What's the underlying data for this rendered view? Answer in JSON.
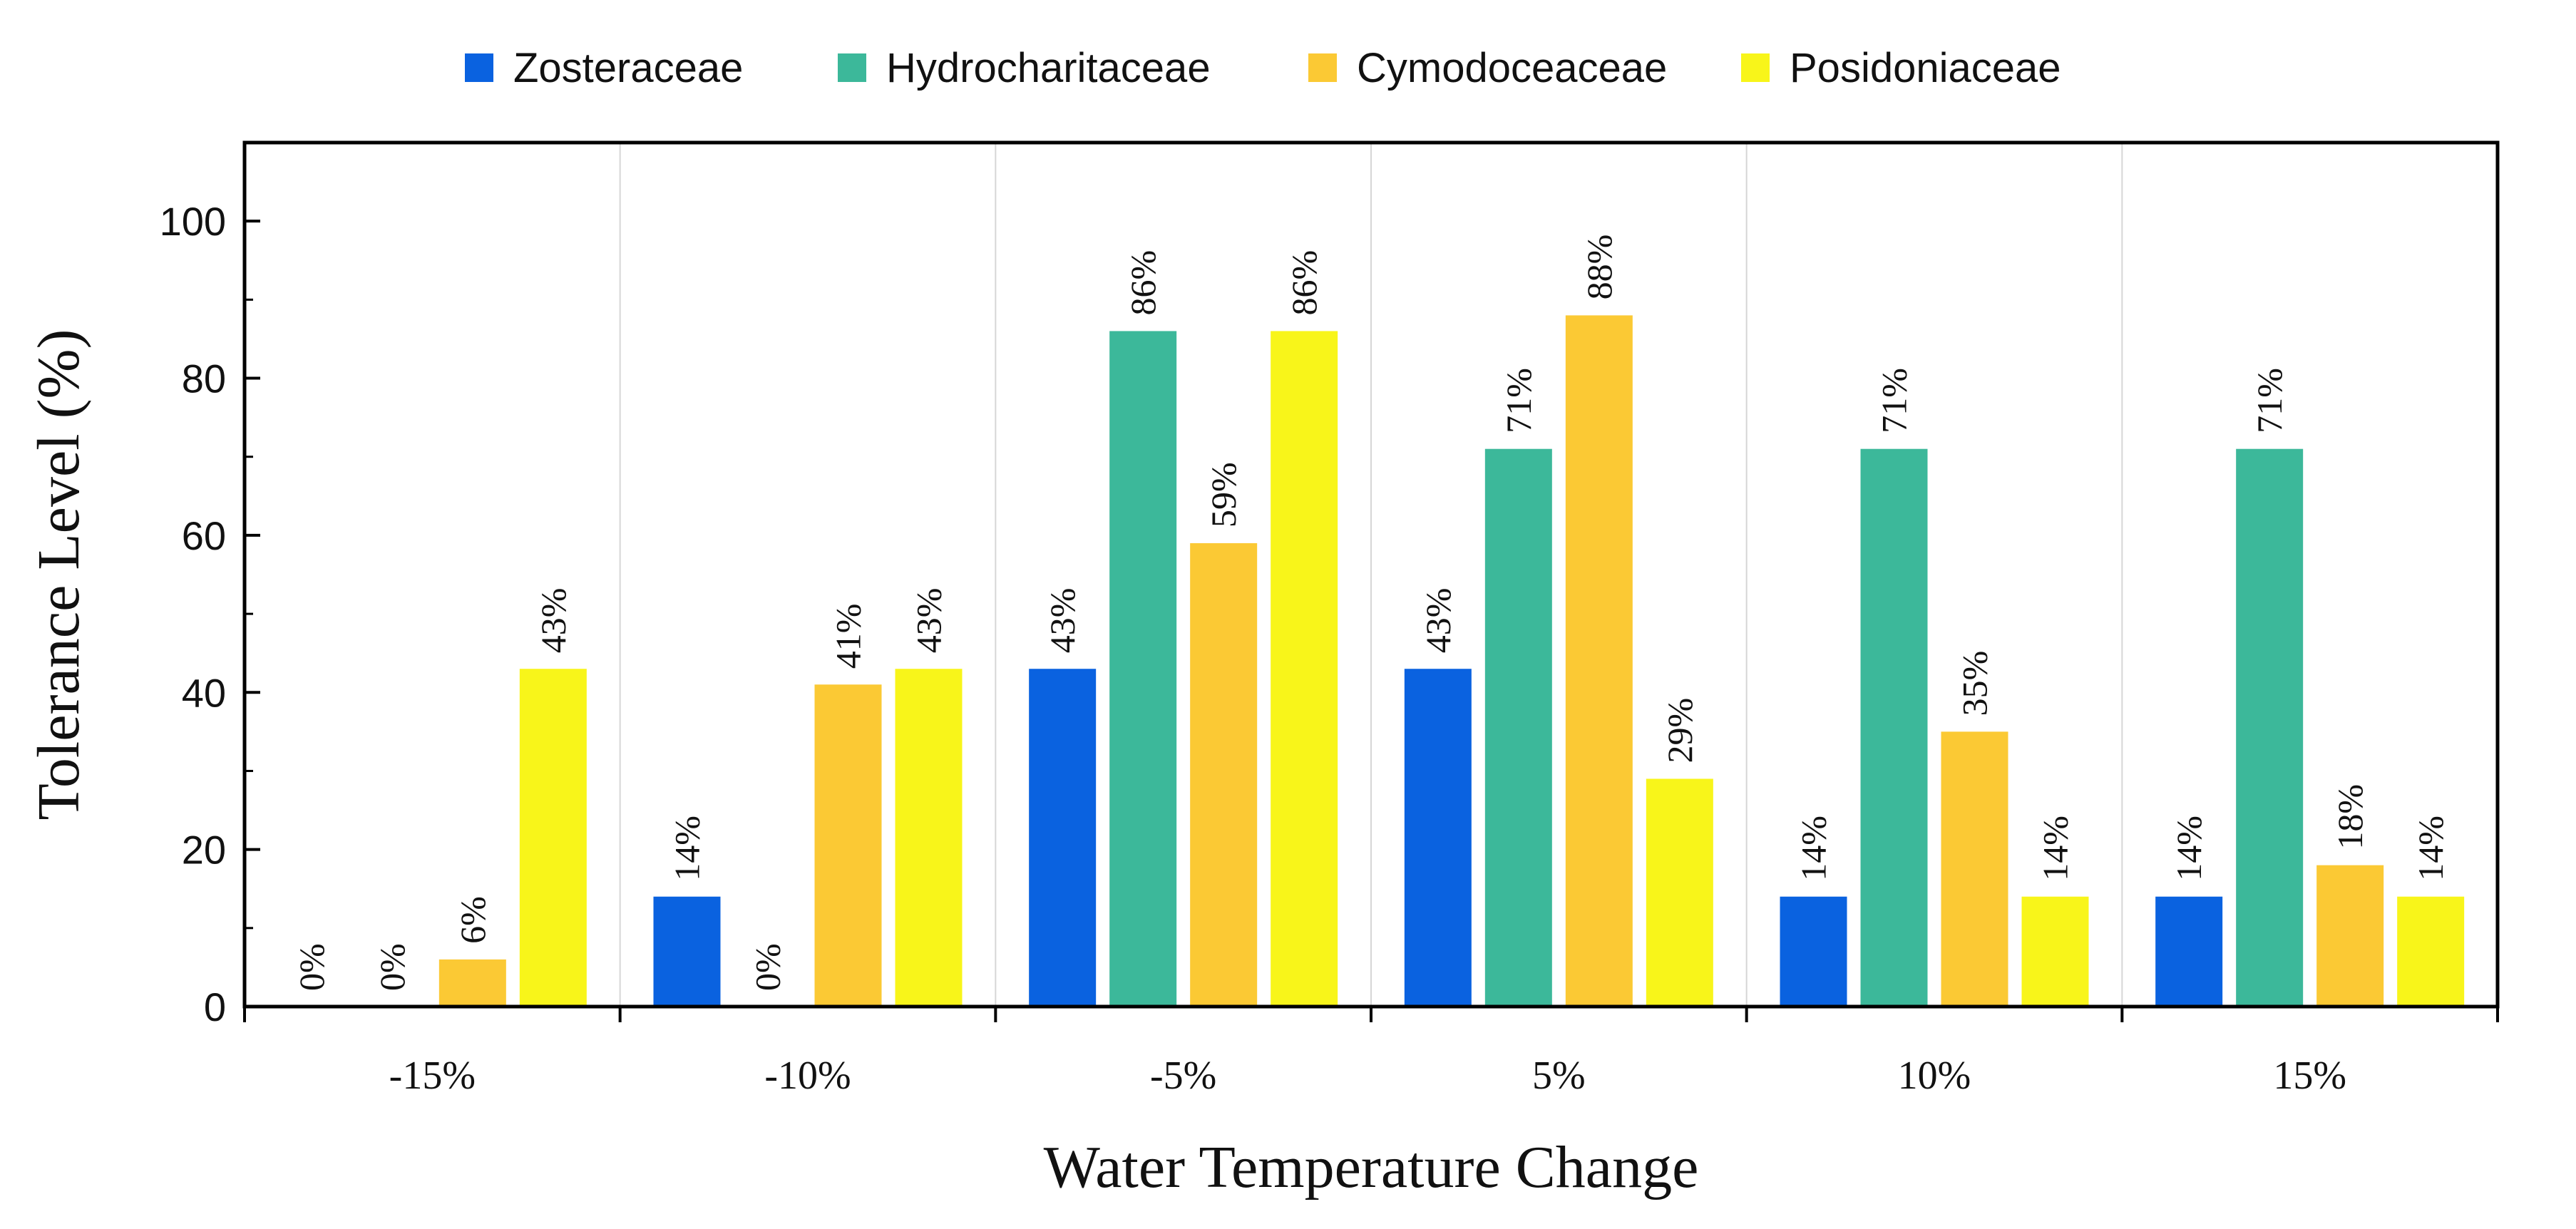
{
  "chart_data": {
    "type": "bar",
    "title": "",
    "xlabel": "Water Temperature Change",
    "ylabel": "Tolerance Level (%)",
    "ylim": [
      0,
      110
    ],
    "yticks": [
      0,
      20,
      40,
      60,
      80,
      100
    ],
    "grid": "vertical separators between groups",
    "legend_position": "top",
    "categories": [
      "-15%",
      "-10%",
      "-5%",
      "5%",
      "10%",
      "15%"
    ],
    "series": [
      {
        "name": "Zosteraceae",
        "color": "#0a62e0",
        "values": [
          0,
          14,
          43,
          43,
          14,
          14
        ],
        "labels": [
          "0%",
          "14%",
          "43%",
          "43%",
          "14%",
          "14%"
        ]
      },
      {
        "name": "Hydrocharitaceae",
        "color": "#3cb89a",
        "values": [
          0,
          0,
          86,
          71,
          71,
          71
        ],
        "labels": [
          "0%",
          "0%",
          "86%",
          "71%",
          "71%",
          "71%"
        ]
      },
      {
        "name": "Cymodoceaceae",
        "color": "#fbc934",
        "values": [
          6,
          41,
          59,
          88,
          35,
          18
        ],
        "labels": [
          "6%",
          "41%",
          "59%",
          "88%",
          "35%",
          "18%"
        ]
      },
      {
        "name": "Posidoniaceae",
        "color": "#f8f51a",
        "values": [
          43,
          43,
          86,
          29,
          14,
          14
        ],
        "labels": [
          "43%",
          "43%",
          "86%",
          "29%",
          "14%",
          "14%"
        ]
      }
    ]
  }
}
